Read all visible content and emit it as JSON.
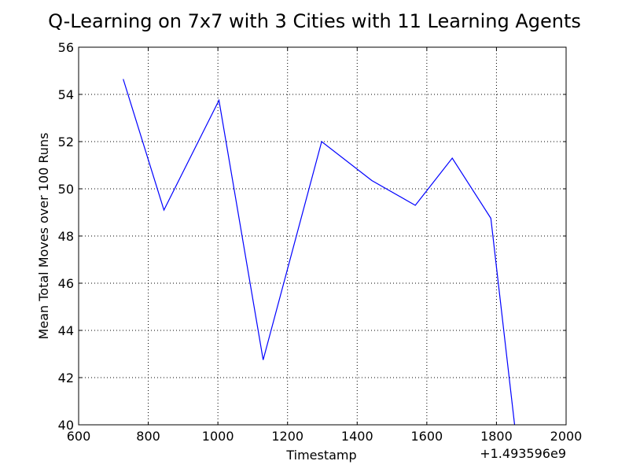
{
  "chart_data": {
    "type": "line",
    "title": "Q-Learning on 7x7 with 3 Cities with 11 Learning Agents",
    "xlabel": "Timestamp",
    "ylabel": "Mean Total Moves over 100 Runs",
    "x_offset_label": "+1.493596e9",
    "xlim": [
      600,
      2000
    ],
    "ylim": [
      40,
      56
    ],
    "xticks": [
      600,
      800,
      1000,
      1200,
      1400,
      1600,
      1800,
      2000
    ],
    "yticks": [
      40,
      42,
      44,
      46,
      48,
      50,
      52,
      54,
      56
    ],
    "grid": true,
    "series": [
      {
        "color": "#0000ff",
        "x": [
          728,
          845,
          1003,
          1130,
          1298,
          1442,
          1567,
          1673,
          1784,
          1852
        ],
        "y": [
          54.65,
          49.1,
          53.75,
          42.75,
          52.0,
          50.35,
          49.3,
          51.3,
          48.75,
          40.0
        ]
      }
    ]
  }
}
